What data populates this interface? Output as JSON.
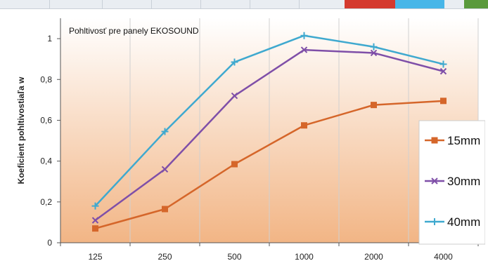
{
  "colors": {
    "plot_top": "#ffffff",
    "plot_bottom": "#f2b585",
    "grid": "#d0d0d0",
    "strip_red": "#d43a2f",
    "strip_blue": "#48b6e8",
    "strip_green": "#5a9a3c"
  },
  "chart_data": {
    "type": "line",
    "title": "Pohltivosť pre panely EKOSOUND",
    "ylabel": "Koeficient pohltivostiaľa w",
    "xlabel": "",
    "categories": [
      "125",
      "250",
      "500",
      "1000",
      "2000",
      "4000"
    ],
    "ylim": [
      0,
      1.1
    ],
    "yticks": [
      "0",
      "0,2",
      "0,4",
      "0,6",
      "0,8",
      "1"
    ],
    "ytick_values": [
      0,
      0.2,
      0.4,
      0.6,
      0.8,
      1.0
    ],
    "grid": "vertical",
    "legend_position": "right",
    "series": [
      {
        "name": "15mm",
        "color": "#d5662a",
        "marker": "square",
        "values": [
          0.07,
          0.165,
          0.385,
          0.575,
          0.675,
          0.695
        ]
      },
      {
        "name": "30mm",
        "color": "#7f4fa8",
        "marker": "cross",
        "values": [
          0.11,
          0.36,
          0.72,
          0.945,
          0.93,
          0.84
        ]
      },
      {
        "name": "40mm",
        "color": "#3fa9cf",
        "marker": "plus",
        "values": [
          0.18,
          0.545,
          0.885,
          1.015,
          0.96,
          0.875
        ]
      }
    ]
  }
}
